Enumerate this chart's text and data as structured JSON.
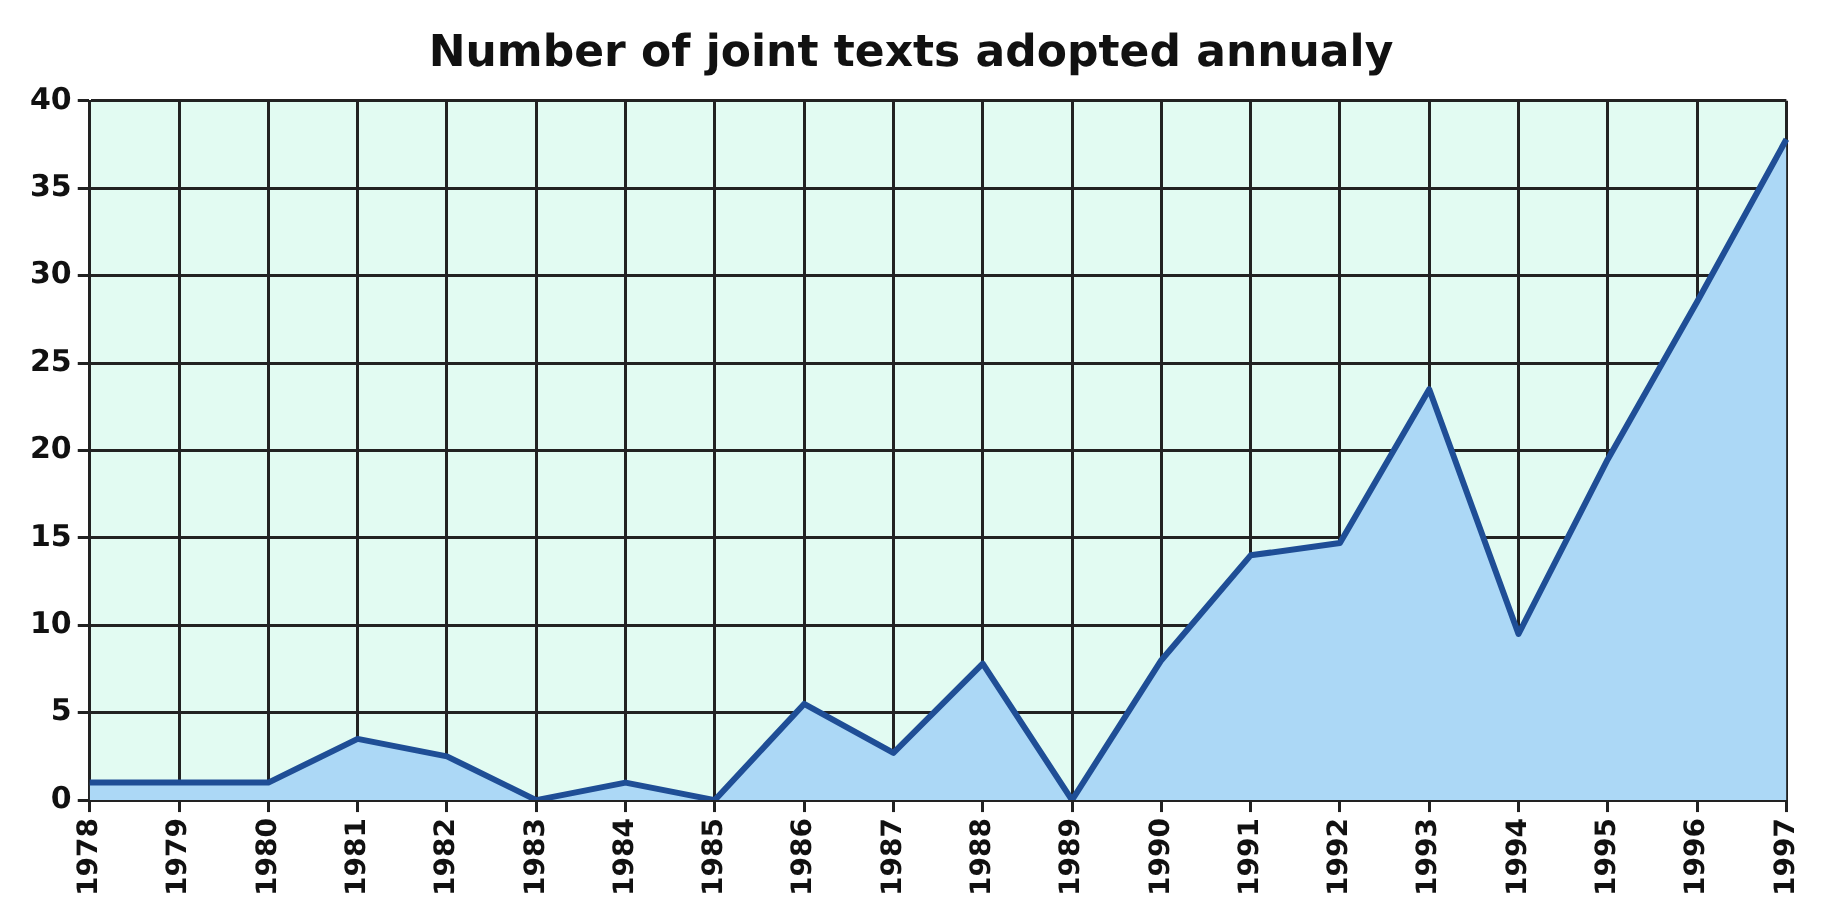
{
  "chart_data": {
    "type": "area",
    "title": "Number of joint texts adopted annualy",
    "categories": [
      "1978",
      "1979",
      "1980",
      "1981",
      "1982",
      "1983",
      "1984",
      "1985",
      "1986",
      "1987",
      "1988",
      "1989",
      "1990",
      "1991",
      "1992",
      "1993",
      "1994",
      "1995",
      "1996",
      "1997"
    ],
    "series": [
      {
        "color": "#1f4e96",
        "values": [
          1,
          1,
          1,
          3.5,
          2.5,
          0,
          1,
          0,
          5.5,
          2.7,
          7.8,
          0,
          8,
          14,
          14.7,
          23.5,
          9.5,
          19.5,
          28.5,
          37.8
        ]
      }
    ],
    "ylim": [
      0,
      40
    ],
    "yticks": [
      0,
      5,
      10,
      15,
      20,
      25,
      30,
      35,
      40
    ],
    "grid": true,
    "legend": false
  }
}
